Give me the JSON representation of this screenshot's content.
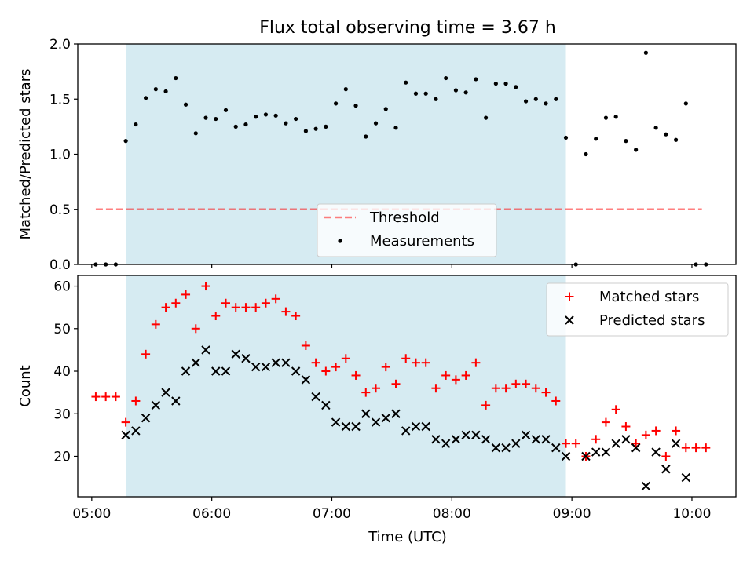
{
  "figure": {
    "title": "Flux total observing time = 3.67 h",
    "xlabel": "Time (UTC)",
    "x_tick_labels": [
      "05:00",
      "06:00",
      "07:00",
      "08:00",
      "09:00",
      "10:00"
    ]
  },
  "colors": {
    "shade": "#add8e6",
    "threshold": "#ff0000",
    "measurements": "#000000",
    "matched": "#ff0000",
    "predicted": "#000000"
  },
  "chart_data": [
    {
      "type": "scatter",
      "ylabel": "Matched/Predicted stars",
      "ylim": [
        0,
        2.0
      ],
      "y_ticks": [
        0.0,
        0.5,
        1.0,
        1.5,
        2.0
      ],
      "y_tick_labels": [
        "0.0",
        "0.5",
        "1.0",
        "1.5",
        "2.0"
      ],
      "xlim": [
        "04:53",
        "10:22"
      ],
      "grid": false,
      "legend": {
        "placement": "bottom-center",
        "entries": [
          "Threshold",
          "Measurements"
        ]
      },
      "shaded_span": {
        "from": "05:17",
        "to": "08:57"
      },
      "threshold": {
        "name": "Threshold",
        "value": 0.5,
        "from": "05:02",
        "to": "10:05"
      },
      "series": [
        {
          "name": "Measurements",
          "x": [
            "05:02",
            "05:07",
            "05:12",
            "05:17",
            "05:22",
            "05:27",
            "05:32",
            "05:37",
            "05:42",
            "05:47",
            "05:52",
            "05:57",
            "06:02",
            "06:07",
            "06:12",
            "06:17",
            "06:22",
            "06:27",
            "06:32",
            "06:37",
            "06:42",
            "06:47",
            "06:52",
            "06:57",
            "07:02",
            "07:07",
            "07:12",
            "07:17",
            "07:22",
            "07:27",
            "07:32",
            "07:37",
            "07:42",
            "07:47",
            "07:52",
            "07:57",
            "08:02",
            "08:07",
            "08:12",
            "08:17",
            "08:22",
            "08:27",
            "08:32",
            "08:37",
            "08:42",
            "08:47",
            "08:52",
            "08:57",
            "09:02",
            "09:07",
            "09:12",
            "09:17",
            "09:22",
            "09:27",
            "09:32",
            "09:37",
            "09:42",
            "09:47",
            "09:52",
            "09:57",
            "10:02",
            "10:07"
          ],
          "y": [
            0.0,
            0.0,
            0.0,
            1.12,
            1.27,
            1.51,
            1.59,
            1.57,
            1.69,
            1.45,
            1.19,
            1.33,
            1.32,
            1.4,
            1.25,
            1.27,
            1.34,
            1.36,
            1.35,
            1.28,
            1.32,
            1.21,
            1.23,
            1.25,
            1.46,
            1.59,
            1.44,
            1.16,
            1.28,
            1.41,
            1.24,
            1.65,
            1.55,
            1.55,
            1.5,
            1.69,
            1.58,
            1.56,
            1.68,
            1.33,
            1.64,
            1.64,
            1.61,
            1.48,
            1.5,
            1.46,
            1.5,
            1.15,
            0.0,
            1.0,
            1.14,
            1.33,
            1.34,
            1.12,
            1.04,
            1.92,
            1.24,
            1.18,
            1.13,
            1.46,
            0.0,
            0.0
          ]
        }
      ]
    },
    {
      "type": "scatter",
      "ylabel": "Count",
      "ylim": [
        10.5,
        62.5
      ],
      "y_ticks": [
        20,
        30,
        40,
        50,
        60
      ],
      "y_tick_labels": [
        "20",
        "30",
        "40",
        "50",
        "60"
      ],
      "xlim": [
        "04:53",
        "10:22"
      ],
      "grid": false,
      "legend": {
        "placement": "top-right",
        "entries": [
          "Matched stars",
          "Predicted stars"
        ]
      },
      "shaded_span": {
        "from": "05:17",
        "to": "08:57"
      },
      "series": [
        {
          "name": "Matched stars",
          "marker": "+",
          "x": [
            "05:02",
            "05:07",
            "05:12",
            "05:17",
            "05:22",
            "05:27",
            "05:32",
            "05:37",
            "05:42",
            "05:47",
            "05:52",
            "05:57",
            "06:02",
            "06:07",
            "06:12",
            "06:17",
            "06:22",
            "06:27",
            "06:32",
            "06:37",
            "06:42",
            "06:47",
            "06:52",
            "06:57",
            "07:02",
            "07:07",
            "07:12",
            "07:17",
            "07:22",
            "07:27",
            "07:32",
            "07:37",
            "07:42",
            "07:47",
            "07:52",
            "07:57",
            "08:02",
            "08:07",
            "08:12",
            "08:17",
            "08:22",
            "08:27",
            "08:32",
            "08:37",
            "08:42",
            "08:47",
            "08:52",
            "08:57",
            "09:02",
            "09:07",
            "09:12",
            "09:17",
            "09:22",
            "09:27",
            "09:32",
            "09:37",
            "09:42",
            "09:47",
            "09:52",
            "09:57",
            "10:02",
            "10:07"
          ],
          "y": [
            34,
            34,
            34,
            28,
            33,
            44,
            51,
            55,
            56,
            58,
            50,
            60,
            53,
            56,
            55,
            55,
            55,
            56,
            57,
            54,
            53,
            46,
            42,
            40,
            41,
            43,
            39,
            35,
            36,
            41,
            37,
            43,
            42,
            42,
            36,
            39,
            38,
            39,
            42,
            32,
            36,
            36,
            37,
            37,
            36,
            35,
            33,
            23,
            23,
            20,
            24,
            28,
            31,
            27,
            23,
            25,
            26,
            20,
            26,
            22,
            22,
            22
          ]
        },
        {
          "name": "Predicted stars",
          "marker": "x",
          "x": [
            "05:17",
            "05:22",
            "05:27",
            "05:32",
            "05:37",
            "05:42",
            "05:47",
            "05:52",
            "05:57",
            "06:02",
            "06:07",
            "06:12",
            "06:17",
            "06:22",
            "06:27",
            "06:32",
            "06:37",
            "06:42",
            "06:47",
            "06:52",
            "06:57",
            "07:02",
            "07:07",
            "07:12",
            "07:17",
            "07:22",
            "07:27",
            "07:32",
            "07:37",
            "07:42",
            "07:47",
            "07:52",
            "07:57",
            "08:02",
            "08:07",
            "08:12",
            "08:17",
            "08:22",
            "08:27",
            "08:32",
            "08:37",
            "08:42",
            "08:47",
            "08:52",
            "08:57",
            "09:07",
            "09:12",
            "09:17",
            "09:22",
            "09:27",
            "09:32",
            "09:37",
            "09:42",
            "09:47",
            "09:52",
            "09:57"
          ],
          "y": [
            25,
            26,
            29,
            32,
            35,
            33,
            40,
            42,
            45,
            40,
            40,
            44,
            43,
            41,
            41,
            42,
            42,
            40,
            38,
            34,
            32,
            28,
            27,
            27,
            30,
            28,
            29,
            30,
            26,
            27,
            27,
            24,
            23,
            24,
            25,
            25,
            24,
            22,
            22,
            23,
            25,
            24,
            24,
            22,
            20,
            20,
            21,
            21,
            23,
            24,
            22,
            13,
            21,
            17,
            23,
            15
          ]
        }
      ]
    }
  ]
}
